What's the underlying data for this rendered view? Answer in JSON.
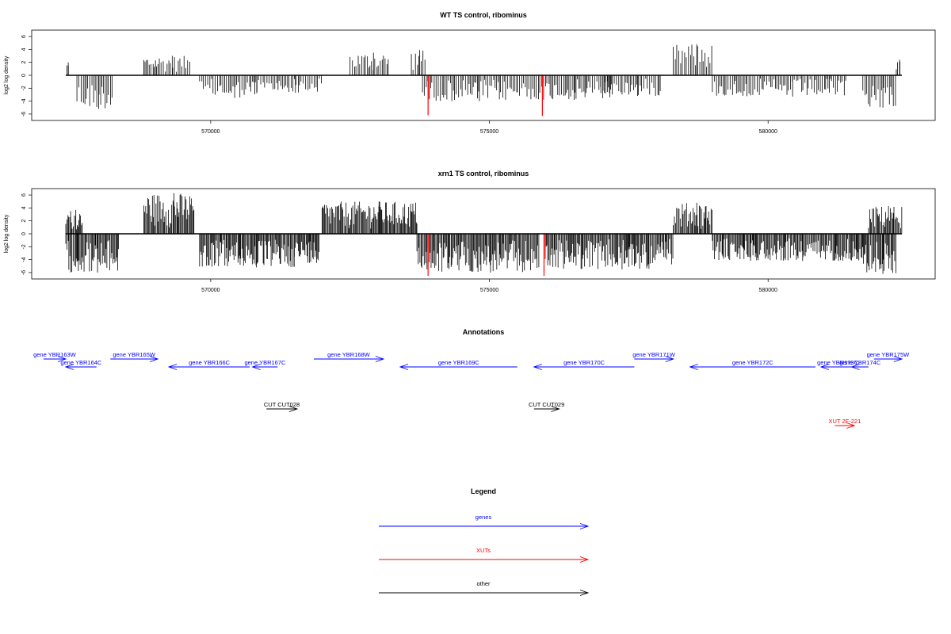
{
  "chart_data": [
    {
      "type": "bar",
      "title": "WT TS control, ribominus",
      "ylabel": "log2 log density",
      "xticks": [
        570000,
        575000,
        580000
      ],
      "yticks": [
        -6,
        -4,
        -2,
        0,
        2,
        4,
        6
      ],
      "xlim": [
        567400,
        582400
      ],
      "ylim": [
        -6.5,
        6.5
      ],
      "blocks": [
        {
          "x": [
            567420,
            567460
          ],
          "y": 2.0,
          "sign": 1
        },
        {
          "x": [
            567600,
            568250
          ],
          "y": -5.2,
          "sign": -1
        },
        {
          "x": [
            568800,
            569650
          ],
          "y": 3.0,
          "sign": 1
        },
        {
          "x": [
            569800,
            570850
          ],
          "y": -3.5,
          "sign": -1
        },
        {
          "x": [
            570800,
            572000
          ],
          "y": -2.7,
          "sign": -1
        },
        {
          "x": [
            572500,
            573200
          ],
          "y": 3.5,
          "sign": 1
        },
        {
          "x": [
            573600,
            573850
          ],
          "y": 3.9,
          "sign": 1
        },
        {
          "x": [
            573800,
            575500
          ],
          "y": -4.0,
          "sign": -1
        },
        {
          "x": [
            575500,
            577200
          ],
          "y": -3.8,
          "sign": -1
        },
        {
          "x": [
            577000,
            578100
          ],
          "y": -3.2,
          "sign": -1
        },
        {
          "x": [
            578300,
            579000
          ],
          "y": 4.8,
          "sign": 1
        },
        {
          "x": [
            579000,
            581400
          ],
          "y": -3.3,
          "sign": -1
        },
        {
          "x": [
            581700,
            582300
          ],
          "y": -5.0,
          "sign": -1
        },
        {
          "x": [
            582300,
            582400
          ],
          "y": 2.4,
          "sign": 1
        }
      ],
      "highlights": [
        {
          "x": 573900,
          "y": -6.2,
          "color": "#ff0000"
        },
        {
          "x": 575950,
          "y": -6.3,
          "color": "#ff0000"
        }
      ]
    },
    {
      "type": "bar",
      "title": "xrn1 TS control, ribominus",
      "ylabel": "log2 log density",
      "xticks": [
        570000,
        575000,
        580000
      ],
      "yticks": [
        -6,
        -4,
        -2,
        0,
        2,
        4,
        6
      ],
      "xlim": [
        567400,
        582400
      ],
      "ylim": [
        -6.5,
        6.5
      ],
      "blocks": [
        {
          "x": [
            567400,
            567700
          ],
          "y": 3.7,
          "sign": 1
        },
        {
          "x": [
            567400,
            568350
          ],
          "y": -6.0,
          "sign": -1
        },
        {
          "x": [
            568800,
            569700
          ],
          "y": 6.3,
          "sign": 1
        },
        {
          "x": [
            569800,
            571500
          ],
          "y": -5.2,
          "sign": -1
        },
        {
          "x": [
            571500,
            571950
          ],
          "y": -4.5,
          "sign": -1
        },
        {
          "x": [
            572000,
            573700
          ],
          "y": 5.0,
          "sign": 1
        },
        {
          "x": [
            573700,
            575900
          ],
          "y": -6.0,
          "sign": -1
        },
        {
          "x": [
            576000,
            578300
          ],
          "y": -5.5,
          "sign": -1
        },
        {
          "x": [
            578300,
            579000
          ],
          "y": 4.8,
          "sign": 1
        },
        {
          "x": [
            579000,
            581700
          ],
          "y": -4.2,
          "sign": -1
        },
        {
          "x": [
            581700,
            582300
          ],
          "y": -6.2,
          "sign": -1
        },
        {
          "x": [
            581800,
            582400
          ],
          "y": 4.3,
          "sign": 1
        }
      ],
      "highlights": [
        {
          "x": 573900,
          "y": -6.5,
          "color": "#ff0000"
        },
        {
          "x": 575980,
          "y": -6.5,
          "color": "#ff0000"
        }
      ]
    }
  ],
  "annotations": {
    "title": "Annotations",
    "items": [
      {
        "label": "gene YBR163W",
        "start": 567000,
        "end": 567400,
        "dir": "+",
        "color": "#0000ff",
        "row": 0
      },
      {
        "label": "gene YBR164C",
        "start": 567400,
        "end": 567950,
        "dir": "-",
        "color": "#0000ff",
        "row": 1
      },
      {
        "label": "gene YBR165W",
        "start": 568200,
        "end": 569050,
        "dir": "+",
        "color": "#0000ff",
        "row": 0
      },
      {
        "label": "gene YBR166C",
        "start": 569250,
        "end": 570700,
        "dir": "-",
        "color": "#0000ff",
        "row": 1
      },
      {
        "label": "gene YBR167C",
        "start": 570750,
        "end": 571200,
        "dir": "-",
        "color": "#0000ff",
        "row": 1
      },
      {
        "label": "gene YBR168W",
        "start": 571850,
        "end": 573100,
        "dir": "+",
        "color": "#0000ff",
        "row": 0
      },
      {
        "label": "gene YBR169C",
        "start": 573400,
        "end": 575500,
        "dir": "-",
        "color": "#0000ff",
        "row": 1
      },
      {
        "label": "gene YBR170C",
        "start": 575800,
        "end": 577600,
        "dir": "-",
        "color": "#0000ff",
        "row": 1
      },
      {
        "label": "gene YBR171W",
        "start": 577600,
        "end": 578300,
        "dir": "+",
        "color": "#0000ff",
        "row": 0
      },
      {
        "label": "gene YBR172C",
        "start": 578600,
        "end": 580850,
        "dir": "-",
        "color": "#0000ff",
        "row": 1
      },
      {
        "label": "gene YBR173C",
        "start": 580950,
        "end": 581550,
        "dir": "-",
        "color": "#0000ff",
        "row": 1
      },
      {
        "label": "gene YBR174C",
        "start": 581500,
        "end": 581800,
        "dir": "-",
        "color": "#0000ff",
        "row": 1
      },
      {
        "label": "gene YBR175W",
        "start": 581900,
        "end": 582400,
        "dir": "+",
        "color": "#0000ff",
        "row": 0
      },
      {
        "label": "CUT CUT028",
        "start": 571000,
        "end": 571550,
        "dir": "+",
        "color": "#000000",
        "row": 2
      },
      {
        "label": "CUT CUT029",
        "start": 575800,
        "end": 576250,
        "dir": "+",
        "color": "#000000",
        "row": 2
      },
      {
        "label": "XUT 2F-221",
        "start": 581200,
        "end": 581550,
        "dir": "+",
        "color": "#ff0000",
        "row": 3
      }
    ]
  },
  "legend": {
    "title": "Legend",
    "items": [
      {
        "label": "genes",
        "color": "#0000ff"
      },
      {
        "label": "XUTs",
        "color": "#ff0000"
      },
      {
        "label": "other",
        "color": "#000000"
      }
    ]
  }
}
